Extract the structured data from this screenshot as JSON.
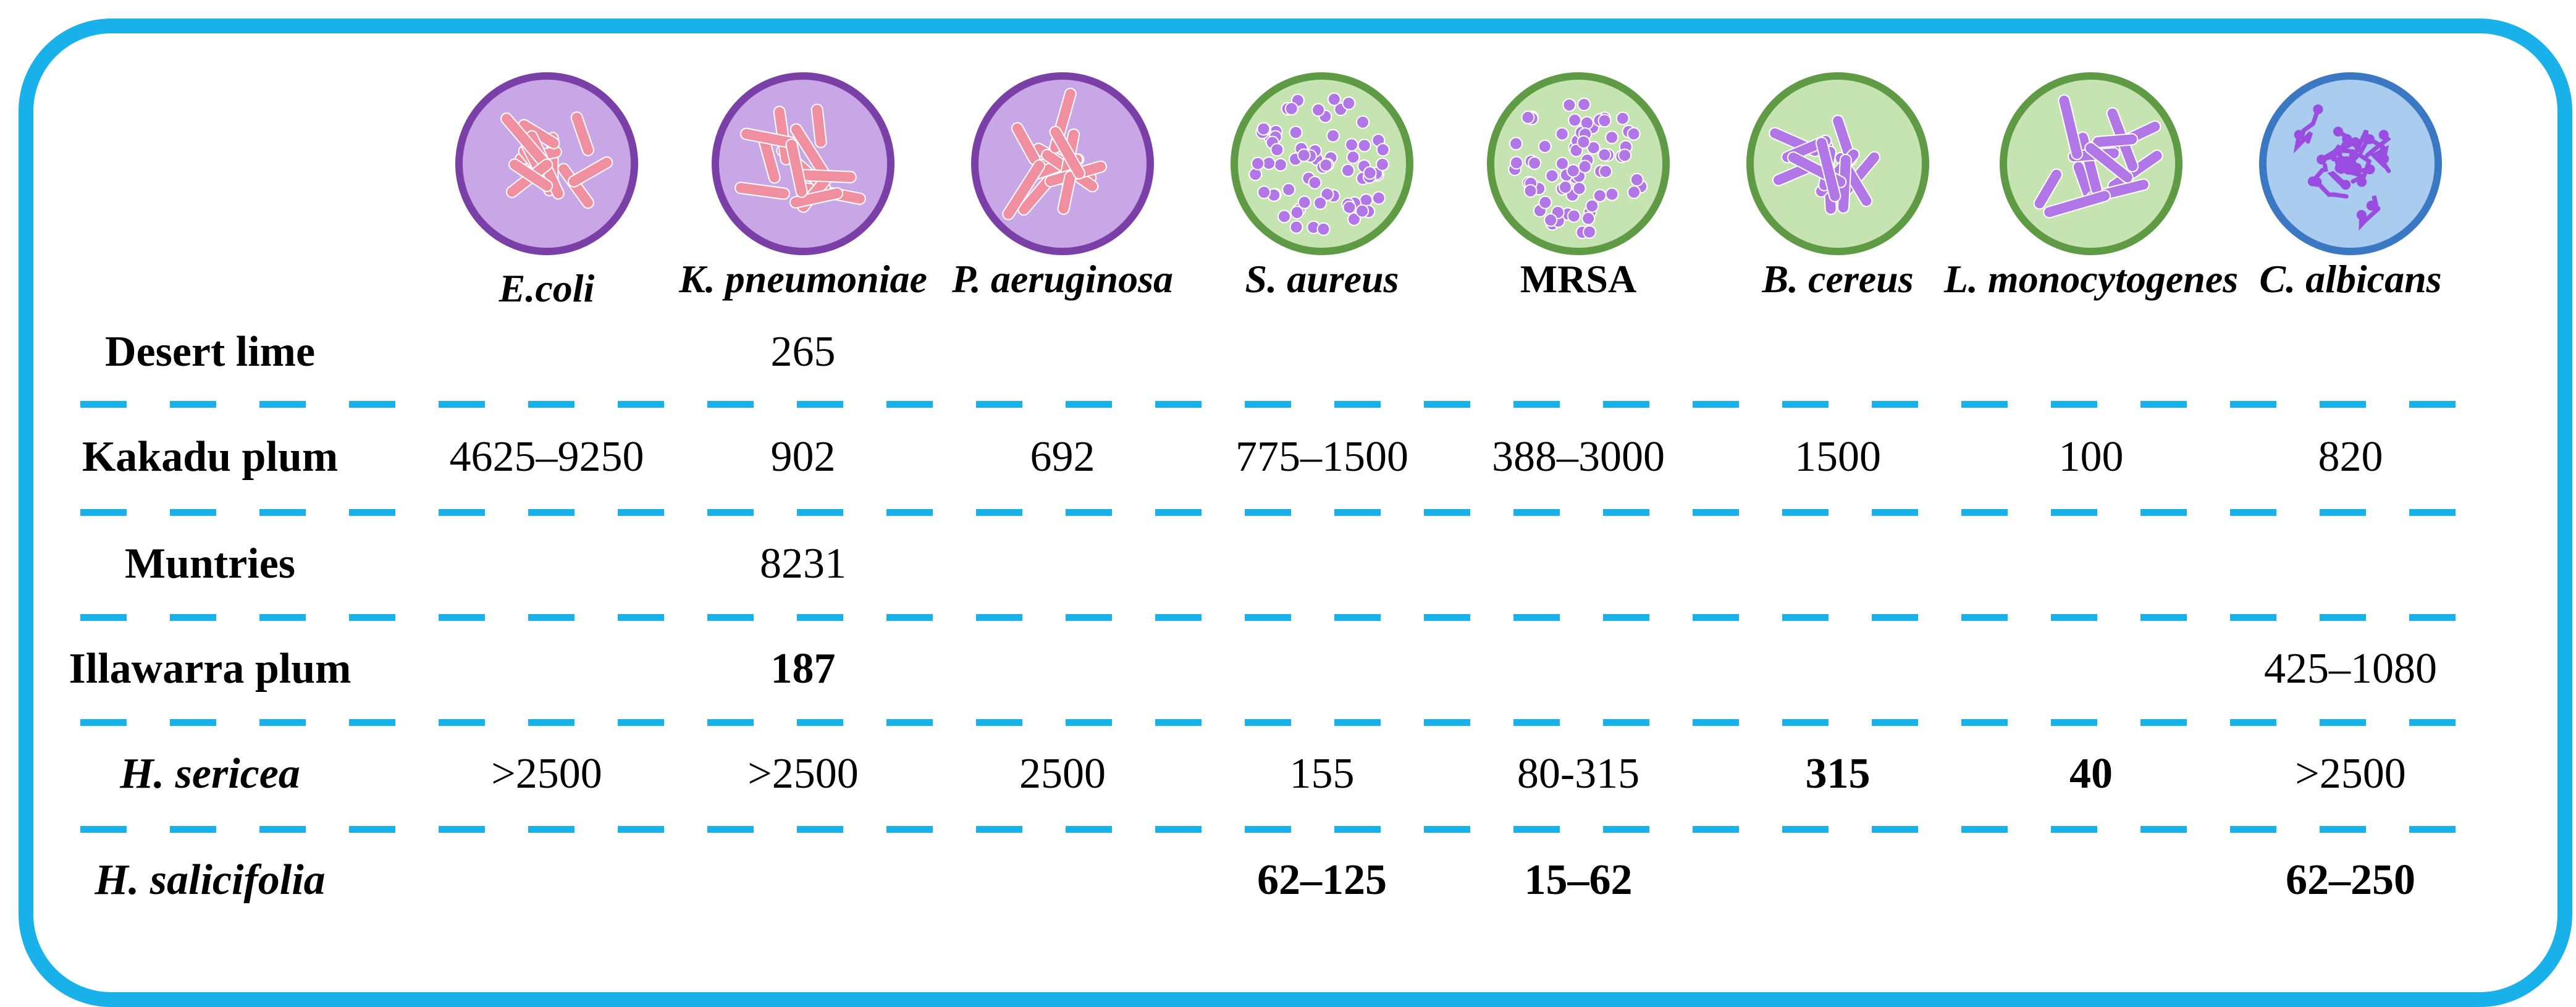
{
  "columns": [
    {
      "name": "E.coli",
      "italic": true,
      "cell_type": "rod",
      "wall": "gram-negative"
    },
    {
      "name": "K. pneumoniae",
      "italic": true,
      "cell_type": "rod",
      "wall": "gram-negative"
    },
    {
      "name": "P. aeruginosa",
      "italic": true,
      "cell_type": "rod",
      "wall": "gram-negative"
    },
    {
      "name": "S. aureus",
      "italic": true,
      "cell_type": "coccus",
      "wall": "gram-positive"
    },
    {
      "name": "MRSA",
      "italic": false,
      "cell_type": "coccus",
      "wall": "gram-positive"
    },
    {
      "name": "B. cereus",
      "italic": true,
      "cell_type": "rod",
      "wall": "gram-positive"
    },
    {
      "name": "L. monocytogenes",
      "italic": true,
      "cell_type": "rod",
      "wall": "gram-positive"
    },
    {
      "name": "C. albicans",
      "italic": true,
      "cell_type": "hyphae",
      "wall": "fungus"
    }
  ],
  "rows": [
    {
      "label": "Desert lime",
      "italic": false,
      "cells": [
        "",
        "265",
        "",
        "",
        "",
        "",
        "",
        ""
      ],
      "bold": [
        false,
        false,
        false,
        false,
        false,
        false,
        false,
        false
      ]
    },
    {
      "label": "Kakadu plum",
      "italic": false,
      "cells": [
        "4625–9250",
        "902",
        "692",
        "775–1500",
        "388–3000",
        "1500",
        "100",
        "820"
      ],
      "bold": [
        false,
        false,
        false,
        false,
        false,
        false,
        false,
        false
      ]
    },
    {
      "label": "Muntries",
      "italic": false,
      "cells": [
        "",
        "8231",
        "",
        "",
        "",
        "",
        "",
        ""
      ],
      "bold": [
        false,
        false,
        false,
        false,
        false,
        false,
        false,
        false
      ]
    },
    {
      "label": "Illawarra plum",
      "italic": false,
      "cells": [
        "",
        "187",
        "",
        "",
        "",
        "",
        "",
        "425–1080"
      ],
      "bold": [
        false,
        true,
        false,
        false,
        false,
        false,
        false,
        false
      ]
    },
    {
      "label": "H. sericea",
      "italic": true,
      "cells": [
        ">2500",
        ">2500",
        "2500",
        "155",
        "80-315",
        "315",
        "40",
        ">2500"
      ],
      "bold": [
        false,
        false,
        false,
        false,
        false,
        true,
        true,
        false
      ]
    },
    {
      "label": "H. salicifolia",
      "italic": true,
      "cells": [
        "",
        "",
        "",
        "62–125",
        "15–62",
        "",
        "",
        "62–250"
      ],
      "bold": [
        false,
        false,
        false,
        true,
        true,
        false,
        false,
        true
      ]
    }
  ],
  "colors": {
    "frame": "#19b1ea",
    "dash": "#19b1ea",
    "gram_negative_fill": "#c9a6e6",
    "gram_negative_rim": "#7b3fa8",
    "gram_negative_cell": "#f08fa0",
    "gram_positive_fill": "#c6e4b2",
    "gram_positive_rim": "#5f9a44",
    "gram_positive_cell": "#b277e6",
    "fungus_fill": "#a9ccef",
    "fungus_rim": "#3b78c4",
    "fungus_cell": "#9a4ce0"
  }
}
